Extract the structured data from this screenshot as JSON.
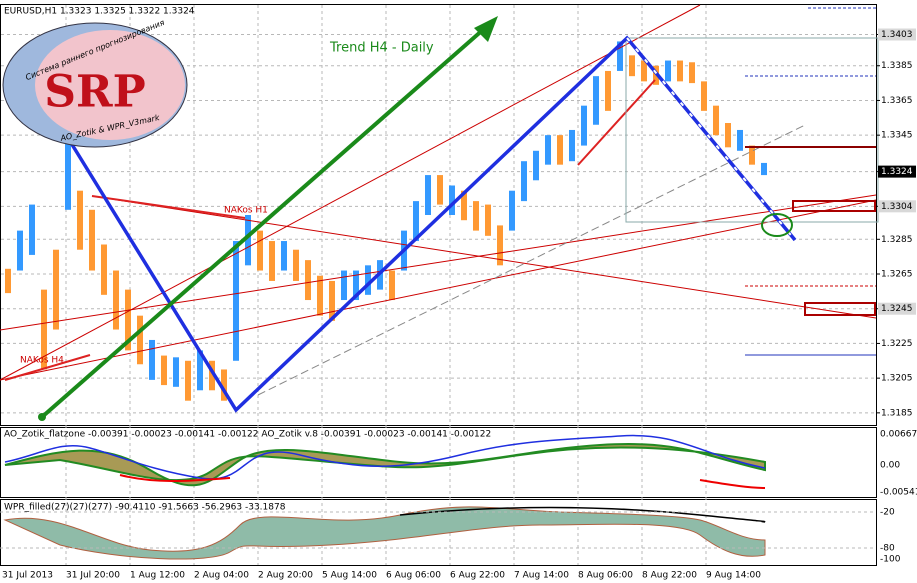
{
  "chart_data": {
    "type": "range-bar",
    "title": "EURUSD,H1  1.3323 1.3325 1.3322 1.3324",
    "annotations": [
      "Trend H4 - Daily",
      "NAKos H1",
      "NAKos H4"
    ],
    "logo": {
      "title": "SRP",
      "top_text": "Система раннего прогнозирования",
      "bottom_text": "AO_Zotik & WPR_V3mark"
    },
    "categories": [
      "31 Jul 2013",
      "31 Jul 20:00",
      "1 Aug 12:00",
      "2 Aug 04:00",
      "2 Aug 20:00",
      "5 Aug 14:00",
      "6 Aug 06:00",
      "6 Aug 22:00",
      "7 Aug 14:00",
      "8 Aug 06:00",
      "8 Aug 22:00",
      "9 Aug 14:00"
    ],
    "highs": [
      1.3268,
      1.329,
      1.3305,
      1.3256,
      1.3279,
      1.3348,
      1.3313,
      1.3302,
      1.3282,
      1.3267,
      1.3256,
      1.3241,
      1.3227,
      1.3218,
      1.3217,
      1.3215,
      1.3221,
      1.3215,
      1.321,
      1.3284,
      1.3299,
      1.329,
      1.3284,
      1.3284,
      1.3279,
      1.3273,
      1.3264,
      1.3261,
      1.3267,
      1.3267,
      1.327,
      1.3273,
      1.3267,
      1.329,
      1.3307,
      1.3322,
      1.3322,
      1.3316,
      1.3313,
      1.3307,
      1.3305,
      1.3293,
      1.3313,
      1.333,
      1.3336,
      1.3345,
      1.3345,
      1.3348,
      1.3362,
      1.3379,
      1.3382,
      1.3399,
      1.3391,
      1.3388,
      1.3385,
      1.3388,
      1.3388,
      1.3387,
      1.3376,
      1.3362,
      1.3352,
      1.3348,
      1.3339,
      1.3329
    ],
    "lows": [
      1.3254,
      1.3267,
      1.3276,
      1.321,
      1.3233,
      1.3302,
      1.3279,
      1.3267,
      1.3253,
      1.3233,
      1.3221,
      1.3213,
      1.3204,
      1.3201,
      1.32,
      1.3192,
      1.3198,
      1.3198,
      1.3192,
      1.3215,
      1.327,
      1.3267,
      1.3261,
      1.3267,
      1.3261,
      1.325,
      1.3241,
      1.3238,
      1.325,
      1.325,
      1.3253,
      1.3256,
      1.325,
      1.3267,
      1.3284,
      1.3299,
      1.3305,
      1.3299,
      1.3296,
      1.329,
      1.3287,
      1.327,
      1.329,
      1.3307,
      1.3319,
      1.3328,
      1.3328,
      1.333,
      1.3339,
      1.3351,
      1.3359,
      1.3382,
      1.3379,
      1.3376,
      1.3374,
      1.3376,
      1.3376,
      1.3375,
      1.3359,
      1.3345,
      1.3338,
      1.3336,
      1.3328,
      1.3322
    ],
    "up_color": "#3399ff",
    "down_color": "#ff9933",
    "directions": [
      "down",
      "up",
      "up",
      "down",
      "down",
      "up",
      "down",
      "down",
      "down",
      "down",
      "down",
      "down",
      "up",
      "down",
      "up",
      "down",
      "up",
      "down",
      "down",
      "up",
      "up",
      "down",
      "down",
      "up",
      "down",
      "down",
      "down",
      "down",
      "up",
      "up",
      "up",
      "up",
      "down",
      "up",
      "up",
      "up",
      "down",
      "up",
      "down",
      "down",
      "down",
      "down",
      "up",
      "up",
      "up",
      "up",
      "down",
      "up",
      "up",
      "up",
      "down",
      "up",
      "down",
      "down",
      "down",
      "up",
      "down",
      "down",
      "down",
      "down",
      "down",
      "up",
      "down",
      "up"
    ],
    "ylim": [
      1.3178,
      1.342
    ],
    "yticks": [
      1.3403,
      1.3385,
      1.3365,
      1.3345,
      1.3324,
      1.3304,
      1.3285,
      1.3265,
      1.3245,
      1.3225,
      1.3205,
      1.3185
    ],
    "grid": true
  },
  "indicators": [
    {
      "label": "AO_Zotik_flatzone -0.00391 -0.00023 -0.00141 -0.00122  AO_Zotik v.8 -0.00391 -0.00023 -0.00141 -0.00122",
      "scale": [
        "0.00667",
        "0.00",
        "-0.00541"
      ]
    },
    {
      "label": "WPR_filled(27)(27)(277) -90.4110 -91.5663 -56.2963 -33.1878",
      "scale": [
        "-20",
        "-80",
        "-100"
      ]
    }
  ]
}
